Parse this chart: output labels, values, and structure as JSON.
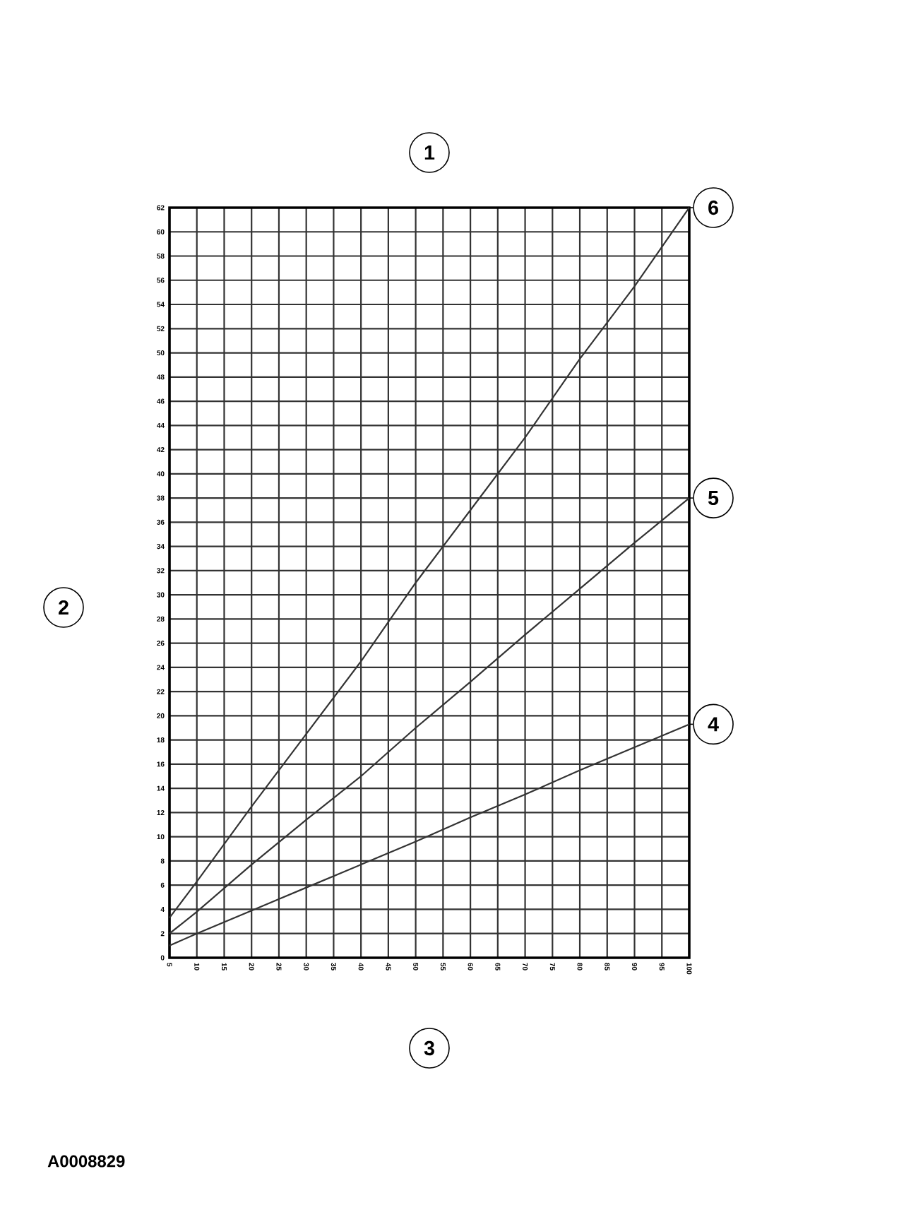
{
  "chart_data": {
    "type": "line",
    "title": "1",
    "ylabel": "2",
    "xlabel": "3",
    "x": [
      5,
      10,
      20,
      30,
      40,
      50,
      60,
      70,
      80,
      90,
      100
    ],
    "series": [
      {
        "name": "4",
        "color": "#333333",
        "values": [
          1,
          2,
          3.9,
          5.8,
          7.7,
          9.6,
          11.6,
          13.5,
          15.5,
          17.4,
          19.3
        ]
      },
      {
        "name": "5",
        "color": "#333333",
        "values": [
          2,
          3.8,
          7.7,
          11.4,
          15,
          19,
          22.8,
          26.7,
          30.5,
          34.3,
          38
        ]
      },
      {
        "name": "6",
        "color": "#333333",
        "values": [
          3.3,
          6.3,
          12.5,
          18.5,
          24.5,
          31,
          37,
          43,
          49.5,
          55.5,
          62
        ]
      }
    ],
    "xlim": [
      5,
      100
    ],
    "ylim": [
      0,
      62
    ],
    "xticks": [
      5,
      10,
      15,
      20,
      25,
      30,
      35,
      40,
      45,
      50,
      55,
      60,
      65,
      70,
      75,
      80,
      85,
      90,
      95,
      100
    ],
    "yticks": [
      0,
      2,
      4,
      6,
      8,
      10,
      12,
      14,
      16,
      18,
      20,
      22,
      24,
      26,
      28,
      30,
      32,
      34,
      36,
      38,
      40,
      42,
      44,
      46,
      48,
      50,
      52,
      54,
      56,
      58,
      60,
      62
    ],
    "grid": true,
    "marker": "none",
    "line_style": "solid",
    "legend": false,
    "annotations": [
      "A0008829"
    ]
  }
}
